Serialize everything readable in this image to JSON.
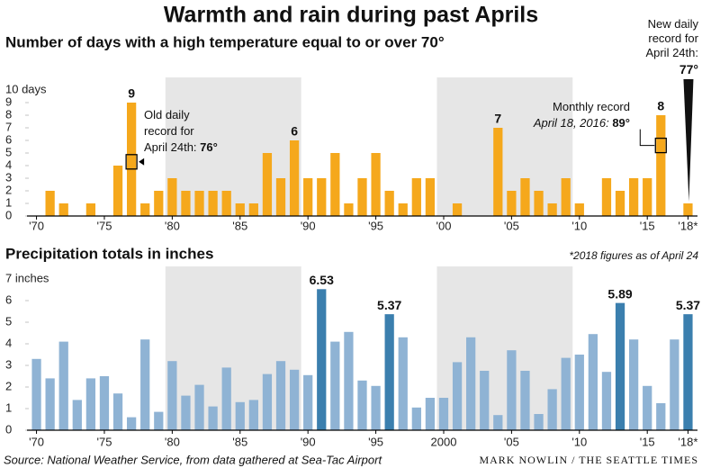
{
  "title": "Warmth and rain during past Aprils",
  "chart_data": [
    {
      "type": "bar",
      "title": "Number of days with a high temperature equal to or over 70°",
      "x": [
        1970,
        1971,
        1972,
        1973,
        1974,
        1975,
        1976,
        1977,
        1978,
        1979,
        1980,
        1981,
        1982,
        1983,
        1984,
        1985,
        1986,
        1987,
        1988,
        1989,
        1990,
        1991,
        1992,
        1993,
        1994,
        1995,
        1996,
        1997,
        1998,
        1999,
        2000,
        2001,
        2002,
        2003,
        2004,
        2005,
        2006,
        2007,
        2008,
        2009,
        2010,
        2011,
        2012,
        2013,
        2014,
        2015,
        2016,
        2017,
        2018
      ],
      "values": [
        0,
        2,
        1,
        0,
        1,
        0,
        4,
        9,
        1,
        2,
        3,
        2,
        2,
        2,
        2,
        1,
        1,
        5,
        3,
        6,
        3,
        3,
        5,
        1,
        3,
        5,
        2,
        1,
        3,
        3,
        0,
        1,
        0,
        0,
        7,
        2,
        3,
        2,
        1,
        3,
        1,
        0,
        3,
        2,
        3,
        3,
        8,
        0,
        1
      ],
      "value_labels": [
        null,
        null,
        null,
        null,
        null,
        null,
        null,
        "9",
        null,
        null,
        null,
        null,
        null,
        null,
        null,
        null,
        null,
        null,
        null,
        "6",
        null,
        null,
        null,
        null,
        null,
        null,
        null,
        null,
        null,
        null,
        null,
        null,
        null,
        null,
        "7",
        null,
        null,
        null,
        null,
        null,
        null,
        null,
        null,
        null,
        null,
        null,
        "8",
        null,
        null
      ],
      "color": "#f5a81c",
      "ylim": [
        0,
        10
      ],
      "yticks": [
        0,
        1,
        2,
        3,
        4,
        5,
        6,
        7,
        8,
        9,
        {
          "value": 10,
          "label": "10 days"
        }
      ],
      "xlim": [
        1969.3,
        2018.7
      ],
      "xticks": [
        {
          "value": 1970,
          "label": "'70"
        },
        {
          "value": 1975,
          "label": "'75"
        },
        {
          "value": 1980,
          "label": "'80"
        },
        {
          "value": 1985,
          "label": "'85"
        },
        {
          "value": 1990,
          "label": "'90"
        },
        {
          "value": 1995,
          "label": "'95"
        },
        {
          "value": 2000,
          "label": "'00"
        },
        {
          "value": 2005,
          "label": "'05"
        },
        {
          "value": 2010,
          "label": "'10"
        },
        {
          "value": 2015,
          "label": "'15"
        },
        {
          "value": 2018,
          "label": "'18*"
        }
      ],
      "shaded": [
        [
          1980,
          1989
        ],
        [
          2000,
          2009
        ]
      ],
      "annotations": {
        "old_record": [
          "Old daily",
          "record for",
          "April 24th: ",
          "76°"
        ],
        "monthly_record": [
          "Monthly record",
          "April 18, 2016: ",
          "89°"
        ],
        "new_record": [
          "New daily",
          "record for",
          "April 24th:",
          "77°"
        ]
      }
    },
    {
      "type": "bar",
      "title": "Precipitation totals in inches",
      "note": "*2018 figures as of April 24",
      "x": [
        1970,
        1971,
        1972,
        1973,
        1974,
        1975,
        1976,
        1977,
        1978,
        1979,
        1980,
        1981,
        1982,
        1983,
        1984,
        1985,
        1986,
        1987,
        1988,
        1989,
        1990,
        1991,
        1992,
        1993,
        1994,
        1995,
        1996,
        1997,
        1998,
        1999,
        2000,
        2001,
        2002,
        2003,
        2004,
        2005,
        2006,
        2007,
        2008,
        2009,
        2010,
        2011,
        2012,
        2013,
        2014,
        2015,
        2016,
        2017,
        2018
      ],
      "values": [
        3.3,
        2.4,
        4.1,
        1.4,
        2.4,
        2.5,
        1.7,
        0.6,
        4.2,
        0.85,
        3.2,
        1.6,
        2.1,
        1.1,
        2.9,
        1.3,
        1.4,
        2.6,
        3.2,
        2.8,
        2.55,
        6.53,
        4.1,
        4.55,
        2.3,
        2.05,
        5.37,
        4.3,
        1.05,
        1.5,
        1.5,
        3.15,
        4.3,
        2.75,
        0.7,
        3.7,
        2.75,
        0.75,
        1.9,
        3.35,
        3.5,
        4.45,
        2.7,
        5.89,
        4.2,
        2.05,
        1.25,
        4.2,
        5.37
      ],
      "value_labels": [
        null,
        null,
        null,
        null,
        null,
        null,
        null,
        null,
        null,
        null,
        null,
        null,
        null,
        null,
        null,
        null,
        null,
        null,
        null,
        null,
        null,
        "6.53",
        null,
        null,
        null,
        null,
        "5.37",
        null,
        null,
        null,
        null,
        null,
        null,
        null,
        null,
        null,
        null,
        null,
        null,
        null,
        null,
        null,
        null,
        "5.89",
        null,
        null,
        null,
        null,
        "5.37"
      ],
      "color": "#8fb3d4",
      "highlight_color": "#3b7fae",
      "ylim": [
        0,
        7
      ],
      "yticks": [
        0,
        1,
        2,
        3,
        4,
        5,
        6,
        {
          "value": 7,
          "label": "7 inches"
        }
      ],
      "xlim": [
        1969.3,
        2018.7
      ],
      "xticks": [
        {
          "value": 1970,
          "label": "'70"
        },
        {
          "value": 1975,
          "label": "'75"
        },
        {
          "value": 1980,
          "label": "'80"
        },
        {
          "value": 1985,
          "label": "'85"
        },
        {
          "value": 1990,
          "label": "'90"
        },
        {
          "value": 1995,
          "label": "'95"
        },
        2000,
        {
          "value": 2005,
          "label": "'05"
        },
        {
          "value": 2010,
          "label": "'10"
        },
        {
          "value": 2015,
          "label": "'15"
        },
        {
          "value": 2018,
          "label": "'18*"
        }
      ],
      "shaded": [
        [
          1980,
          1989
        ],
        [
          2000,
          2009
        ]
      ]
    }
  ],
  "source": "Source: National Weather Service, from data gathered at Sea-Tac Airport",
  "credit": "MARK NOWLIN / THE SEATTLE TIMES"
}
